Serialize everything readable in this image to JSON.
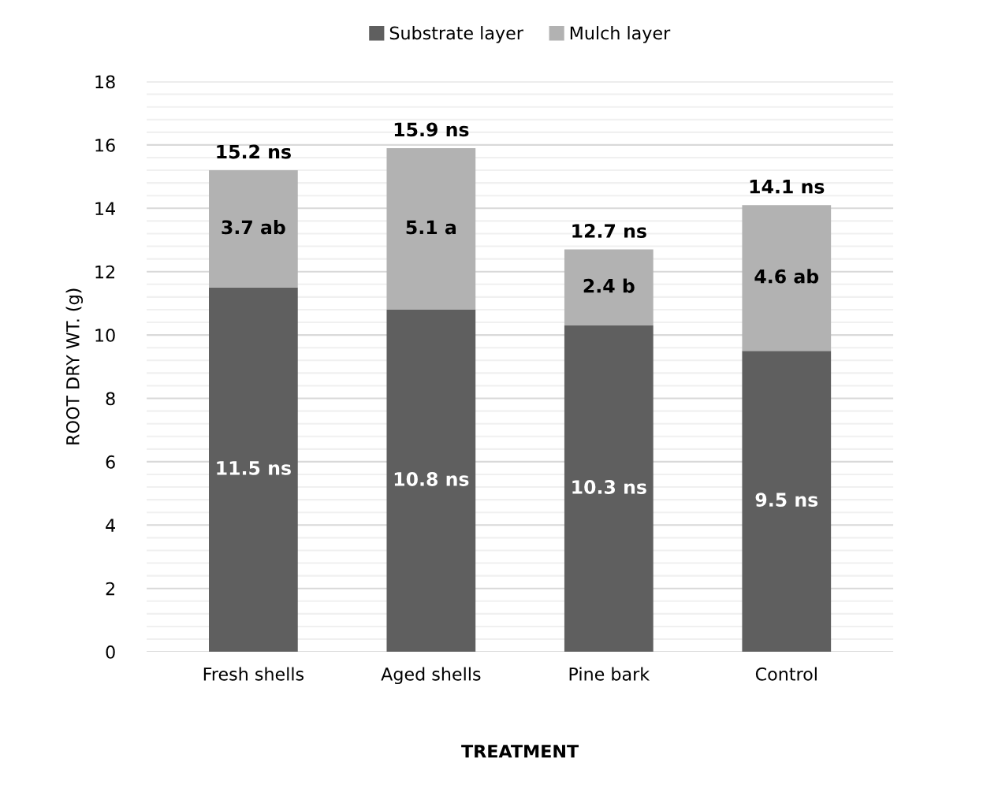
{
  "chart_data": {
    "type": "bar",
    "stacked": true,
    "xlabel": "TREATMENT",
    "ylabel": "ROOT DRY WT. (g)",
    "categories": [
      "Fresh shells",
      "Aged shells",
      "Pine bark",
      "Control"
    ],
    "series": [
      {
        "name": "Substrate layer",
        "color": "#5f5f5f",
        "values": [
          11.5,
          10.8,
          10.3,
          9.5
        ],
        "value_labels": [
          "11.5 ns",
          "10.8 ns",
          "10.3 ns",
          "9.5 ns"
        ]
      },
      {
        "name": "Mulch layer",
        "color": "#b2b2b2",
        "values": [
          3.7,
          5.1,
          2.4,
          4.6
        ],
        "value_labels": [
          "3.7 ab",
          "5.1 a",
          "2.4 b",
          "4.6 ab"
        ]
      }
    ],
    "totals": [
      "15.2 ns",
      "15.9 ns",
      "12.7 ns",
      "14.1 ns"
    ],
    "ylim": [
      0,
      18
    ],
    "yticks": [
      0,
      {
        "value": 0.4,
        "label": null
      },
      {
        "value": 0.8,
        "label": null
      },
      {
        "value": 1.2,
        "label": null
      },
      {
        "value": 1.6,
        "label": null
      },
      2,
      {
        "value": 2.4,
        "label": null
      },
      {
        "value": 2.8,
        "label": null
      },
      {
        "value": 3.2,
        "label": null
      },
      {
        "value": 3.6,
        "label": null
      },
      4,
      {
        "value": 4.4,
        "label": null
      },
      {
        "value": 4.8,
        "label": null
      },
      {
        "value": 5.2,
        "label": null
      },
      {
        "value": 5.6,
        "label": null
      },
      6,
      {
        "value": 6.4,
        "label": null
      },
      {
        "value": 6.8,
        "label": null
      },
      {
        "value": 7.2,
        "label": null
      },
      {
        "value": 7.6,
        "label": null
      },
      8,
      {
        "value": 8.4,
        "label": null
      },
      {
        "value": 8.8,
        "label": null
      },
      {
        "value": 9.2,
        "label": null
      },
      {
        "value": 9.6,
        "label": null
      },
      10,
      {
        "value": 10.4,
        "label": null
      },
      {
        "value": 10.8,
        "label": null
      },
      {
        "value": 11.2,
        "label": null
      },
      {
        "value": 11.6,
        "label": null
      },
      12,
      {
        "value": 12.4,
        "label": null
      },
      {
        "value": 12.8,
        "label": null
      },
      {
        "value": 13.2,
        "label": null
      },
      {
        "value": 13.6,
        "label": null
      },
      14,
      {
        "value": 14.4,
        "label": null
      },
      {
        "value": 14.8,
        "label": null
      },
      {
        "value": 15.2,
        "label": null
      },
      {
        "value": 15.6,
        "label": null
      },
      16,
      {
        "value": 16.4,
        "label": null
      },
      {
        "value": 16.8,
        "label": null
      },
      {
        "value": 17.2,
        "label": null
      },
      {
        "value": 17.6,
        "label": null
      },
      18
    ],
    "grid": "y",
    "legend": "top"
  }
}
